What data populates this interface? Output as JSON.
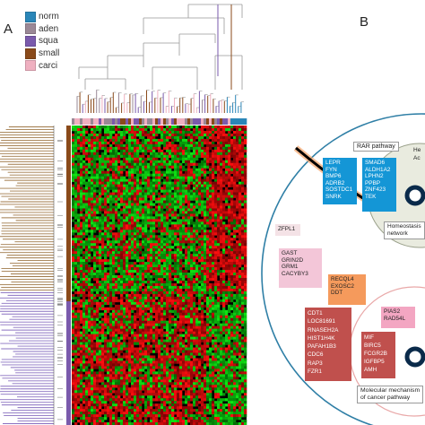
{
  "panel_a": {
    "label": "A",
    "legend": [
      {
        "name": "norm",
        "color": "#2a86b8"
      },
      {
        "name": "aden",
        "color": "#9a8896"
      },
      {
        "name": "squa",
        "color": "#7a5aac"
      },
      {
        "name": "small",
        "color": "#8a4a1a"
      },
      {
        "name": "carci",
        "color": "#efb0c0"
      }
    ]
  },
  "panel_b": {
    "label": "B",
    "boxes": {
      "rar_title": "RAR pathway",
      "he_title": "He",
      "ac_title": "Ac",
      "homeostasis_title": [
        "Homeostasis",
        "network"
      ],
      "molecular_title": [
        "Molecular mechanism",
        "of cancer pathway"
      ],
      "blue_left": [
        "LEPR",
        "FYN",
        "BMP6",
        "ADRB2",
        "SOSTDC1",
        "SNRK"
      ],
      "blue_right": [
        "SMAD6",
        "ALDH1A2",
        "LPHN2",
        "PPBP",
        "ZNF423",
        "TEK"
      ],
      "zfpl1": "ZFPL1",
      "pink_group": [
        "GAST",
        "GRIN2D",
        "GRM1",
        "CACYBY3"
      ],
      "orange_group": [
        "RECQL4",
        "EXOSC2",
        "DDT"
      ],
      "pias2_group": [
        "PIAS2",
        "RAD54L"
      ],
      "red_left": [
        "CDT1",
        "LOC81691",
        "RNASEH2A",
        "HIST1H4K",
        "PAFAH1B3",
        "CDC6",
        "RAP3",
        "FZR1"
      ],
      "red_right": [
        "MIF",
        "BIRC5",
        "FCGR2B",
        "IGFBP5",
        "AMH"
      ]
    }
  }
}
